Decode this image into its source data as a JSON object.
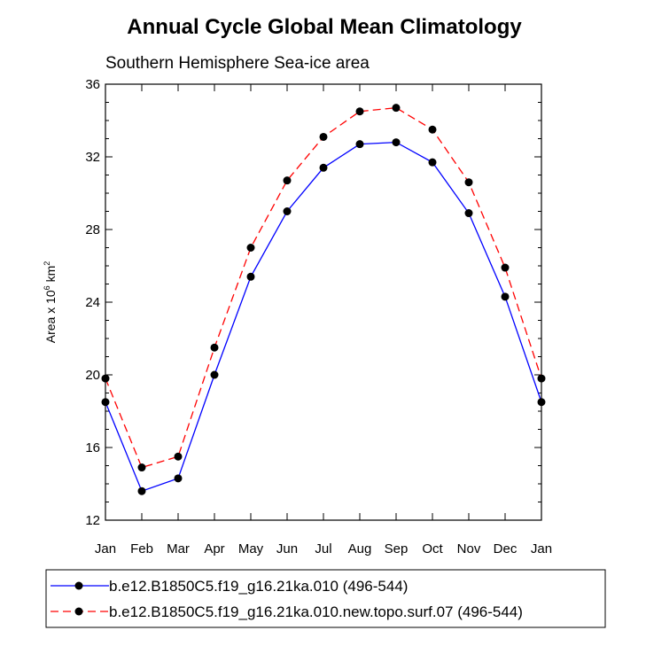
{
  "chart_data": {
    "type": "line",
    "title": "Annual Cycle Global Mean Climatology",
    "subtitle": "Southern Hemisphere Sea-ice area",
    "ylabel": {
      "prefix": "Area x 10",
      "exp": "6",
      "unit": " km",
      "unit_exp": "2"
    },
    "xlabel": "",
    "categories": [
      "Jan",
      "Feb",
      "Mar",
      "Apr",
      "May",
      "Jun",
      "Jul",
      "Aug",
      "Sep",
      "Oct",
      "Nov",
      "Dec",
      "Jan"
    ],
    "ylim": [
      12,
      36
    ],
    "yticks": [
      12,
      16,
      20,
      24,
      28,
      32,
      36
    ],
    "grid": false,
    "legend_position": "bottom",
    "series": [
      {
        "name": "b.e12.B1850C5.f19_g16.21ka.010 (496-544)",
        "color": "#0000ff",
        "style": "solid",
        "values": [
          18.5,
          13.6,
          14.3,
          20.0,
          25.4,
          29.0,
          31.4,
          32.7,
          32.8,
          31.7,
          28.9,
          24.3,
          18.5
        ]
      },
      {
        "name": "b.e12.B1850C5.f19_g16.21ka.010.new.topo.surf.07 (496-544)",
        "color": "#ff0000",
        "style": "dashed",
        "values": [
          19.8,
          14.9,
          15.5,
          21.5,
          27.0,
          30.7,
          33.1,
          34.5,
          34.7,
          33.5,
          30.6,
          25.9,
          19.8
        ]
      }
    ]
  }
}
